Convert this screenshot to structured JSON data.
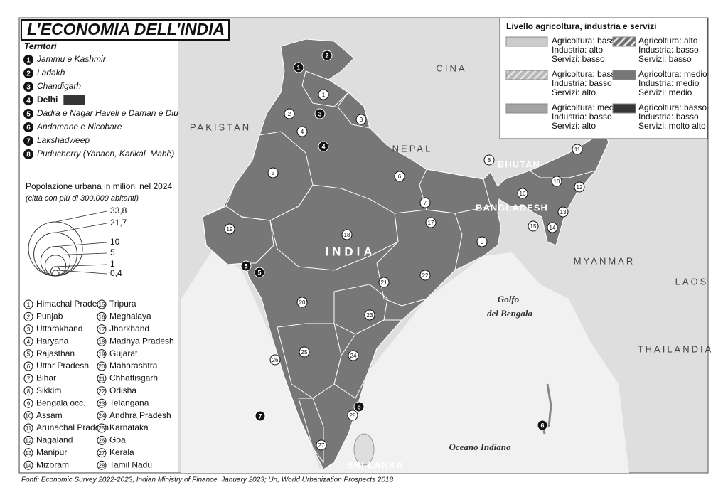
{
  "title": "L’ECONOMIA DELL’INDIA",
  "territories": {
    "heading": "Territori",
    "items": [
      {
        "number": "1",
        "name": "Jammu e Kashmir"
      },
      {
        "number": "2",
        "name": "Ladakh"
      },
      {
        "number": "3",
        "name": "Chandigarh"
      },
      {
        "number": "4",
        "name": "Delhi"
      },
      {
        "number": "5",
        "name": "Dadra e Nagar Haveli e Daman e Diu"
      },
      {
        "number": "6",
        "name": "Andamane e Nicobare"
      },
      {
        "number": "7",
        "name": "Lakshadweep"
      },
      {
        "number": "8",
        "name": "Puducherry (Yanaon, Karikal, Mahè)"
      }
    ]
  },
  "population_scale": {
    "title": "Popolazione urbana in milioni nel 2024",
    "subtitle": "(città con più di 300.000 abitanti)",
    "values": [
      {
        "value": 33.8,
        "label": "33,8"
      },
      {
        "value": 21.7,
        "label": "21,7"
      },
      10,
      5,
      1,
      {
        "value": 0.4,
        "label": "0,4"
      }
    ]
  },
  "states": [
    {
      "number": "1",
      "name": "Himachal Pradesh"
    },
    {
      "number": "2",
      "name": "Punjab"
    },
    {
      "number": "3",
      "name": "Uttarakhand"
    },
    {
      "number": "4",
      "name": "Haryana"
    },
    {
      "number": "5",
      "name": "Rajasthan"
    },
    {
      "number": "6",
      "name": "Uttar Pradesh"
    },
    {
      "number": "7",
      "name": "Bihar"
    },
    {
      "number": "8",
      "name": "Sikkim"
    },
    {
      "number": "9",
      "name": "Bengala occ."
    },
    {
      "number": "10",
      "name": "Assam"
    },
    {
      "number": "11",
      "name": "Arunachal Pradesh"
    },
    {
      "number": "12",
      "name": "Nagaland"
    },
    {
      "number": "13",
      "name": "Manipur"
    },
    {
      "number": "14",
      "name": "Mizoram"
    },
    {
      "number": "15",
      "name": "Tripura"
    },
    {
      "number": "16",
      "name": "Meghalaya"
    },
    {
      "number": "17",
      "name": "Jharkhand"
    },
    {
      "number": "18",
      "name": "Madhya Pradesh"
    },
    {
      "number": "19",
      "name": "Gujarat"
    },
    {
      "number": "20",
      "name": "Maharashtra"
    },
    {
      "number": "21",
      "name": "Chhattisgarh"
    },
    {
      "number": "22",
      "name": "Odisha"
    },
    {
      "number": "23",
      "name": "Telangana"
    },
    {
      "number": "24",
      "name": "Andhra Pradesh"
    },
    {
      "number": "25",
      "name": "Karnataka"
    },
    {
      "number": "26",
      "name": "Goa"
    },
    {
      "number": "27",
      "name": "Kerala"
    },
    {
      "number": "28",
      "name": "Tamil Nadu"
    }
  ],
  "legend": {
    "title": "Livello agricoltura, industria e servizi",
    "items": [
      {
        "lines": [
          "Agricoltura: basso",
          "Industria: alto",
          "Servizi: basso"
        ],
        "fill": "#cbcbcb",
        "hatch": false
      },
      {
        "lines": [
          "Agricoltura: alto",
          "Industria: basso",
          "Servizi: basso"
        ],
        "fill": "#6f6f6f",
        "hatch": true
      },
      {
        "lines": [
          "Agricoltura: basso",
          "Industria: basso",
          "Servizi: alto"
        ],
        "fill": "#b8b8b8",
        "hatch": true
      },
      {
        "lines": [
          "Agricoltura: medio",
          "Industria: medio",
          "Servizi: medio"
        ],
        "fill": "#777777",
        "hatch": false
      },
      {
        "lines": [
          "Agricoltura: medio",
          "Industria: basso",
          "Servizi: alto"
        ],
        "fill": "#a3a3a3",
        "hatch": false
      },
      {
        "lines": [
          "Agricoltura: basso",
          "Industria: basso",
          "Servizi: molto alto"
        ],
        "fill": "#363636",
        "hatch": false
      }
    ]
  },
  "map_labels": [
    "CINA",
    "PAKISTAN",
    "NEPAL",
    "BHUTAN",
    "BANGLADESH",
    "MYANMAR",
    "LAOS",
    "THAILANDIA",
    "INDIA",
    "Golfo",
    "del Bengala",
    "Oceano Indiano",
    "SRI LANKA"
  ],
  "source": "Fonti: Economic Survey 2022-2023, Indian Ministry of Finance, January 2023; Un, World Urbanization Prospects 2018"
}
